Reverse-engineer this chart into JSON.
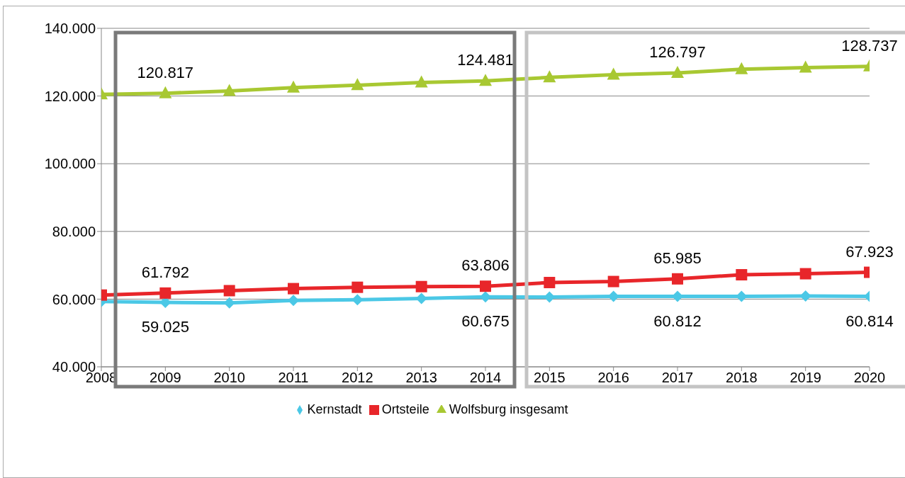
{
  "chart_data": {
    "type": "line",
    "x": [
      2008,
      2009,
      2010,
      2011,
      2012,
      2013,
      2014,
      2015,
      2016,
      2017,
      2018,
      2019,
      2020
    ],
    "xlim": [
      2008,
      2020
    ],
    "xticks": [
      2008,
      2009,
      2010,
      2011,
      2012,
      2013,
      2014,
      2015,
      2016,
      2017,
      2018,
      2019,
      2020
    ],
    "ylim": [
      40000,
      140000
    ],
    "yticks": [
      {
        "value": 40000,
        "label": "40.000"
      },
      {
        "value": 60000,
        "label": "60.000"
      },
      {
        "value": 80000,
        "label": "80.000"
      },
      {
        "value": 100000,
        "label": "100.000"
      },
      {
        "value": 120000,
        "label": "120.000"
      },
      {
        "value": 140000,
        "label": "140.000"
      }
    ],
    "grid": "y",
    "legend": "bottom",
    "series": [
      {
        "name": "Kernstadt",
        "color": "#4bc8e6",
        "marker": "diamond",
        "values": [
          59300,
          59025,
          58900,
          59600,
          59800,
          60200,
          60675,
          60600,
          60800,
          60812,
          60800,
          60900,
          60814
        ],
        "value_labels": [
          null,
          "59.025",
          null,
          null,
          null,
          null,
          "60.675",
          null,
          null,
          "60.812",
          null,
          null,
          "60.814"
        ]
      },
      {
        "name": "Ortsteile",
        "color": "#e8262a",
        "marker": "square",
        "values": [
          61200,
          61792,
          62500,
          63100,
          63500,
          63700,
          63806,
          64900,
          65200,
          65985,
          67200,
          67500,
          67923
        ],
        "value_labels": [
          null,
          "61.792",
          null,
          null,
          null,
          null,
          "63.806",
          null,
          null,
          "65.985",
          null,
          null,
          "67.923"
        ]
      },
      {
        "name": "Wolfsburg insgesamt",
        "color": "#a8c832",
        "marker": "triangle",
        "values": [
          120500,
          120817,
          121500,
          122500,
          123200,
          124000,
          124481,
          125500,
          126300,
          126797,
          127900,
          128400,
          128737
        ],
        "value_labels": [
          null,
          "120.817",
          null,
          null,
          null,
          null,
          "124.481",
          null,
          null,
          "126.797",
          null,
          null,
          "128.737"
        ]
      }
    ]
  }
}
